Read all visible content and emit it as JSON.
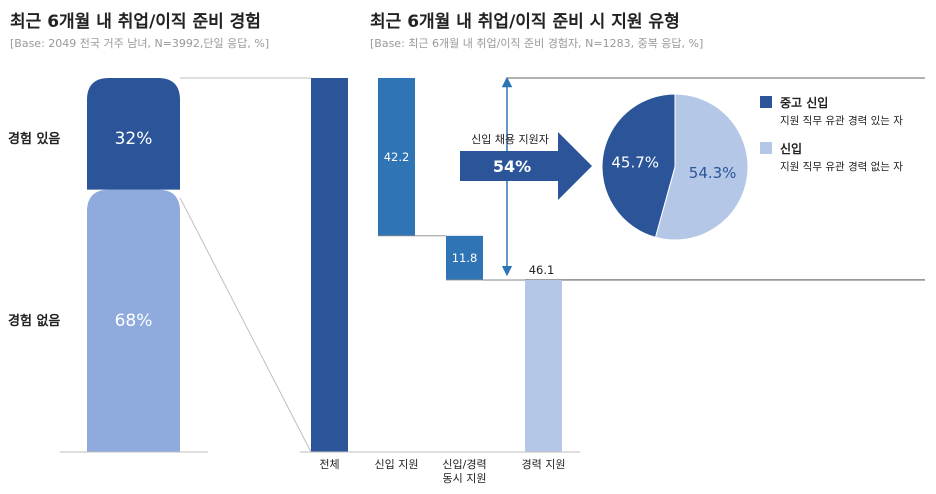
{
  "colors": {
    "dark_blue": "#2c5599",
    "mid_blue": "#2f74b5",
    "light_blue": "#b4c7e7",
    "stack_light": "#8faadc",
    "gray_text": "#999999",
    "line_gray": "#bfbfbf"
  },
  "chart_data": [
    {
      "type": "bar",
      "subtype": "stacked-100",
      "title": "최근 6개월 내 취업/이직 준비 경험",
      "subtitle": "[Base: 2049 전국 거주 남녀, N=3992,단일 응답, %]",
      "categories": [
        "경험 있음",
        "경험 없음"
      ],
      "values": [
        32,
        68
      ],
      "value_labels": [
        "32%",
        "68%"
      ],
      "ylim": [
        0,
        100
      ]
    },
    {
      "type": "bar",
      "subtype": "waterfall",
      "title": "최근 6개월 내 취업/이직 준비 시 지원 유형",
      "subtitle": "[Base: 최근 6개월 내 취업/이직 준비 경험자, N=1283, 중복 응답, %]",
      "categories": [
        "전체",
        "신입 지원",
        "신입/경력 동시 지원",
        "경력 지원"
      ],
      "category_lines": [
        [
          "전체"
        ],
        [
          "신입 지원"
        ],
        [
          "신입/경력",
          "동시 지원"
        ],
        [
          "경력 지원"
        ]
      ],
      "values": [
        100,
        42.2,
        11.8,
        46.1
      ],
      "value_labels": [
        "",
        "42.2",
        "11.8",
        "46.1"
      ],
      "ylim": [
        0,
        100
      ],
      "annotation": {
        "label": "신입 채용 지원자",
        "value": "54%"
      }
    },
    {
      "type": "pie",
      "categories": [
        "중고 신입",
        "신입"
      ],
      "descriptions": [
        "지원 직무 유관 경력 있는 자",
        "지원 직무 유관 경력 없는 자"
      ],
      "values": [
        45.7,
        54.3
      ],
      "value_labels": [
        "45.7%",
        "54.3%"
      ]
    }
  ]
}
